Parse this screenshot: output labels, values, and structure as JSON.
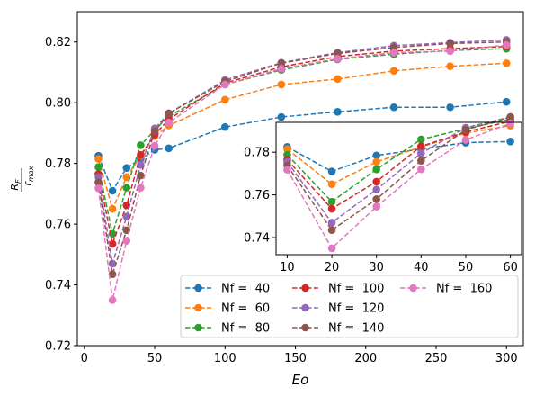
{
  "chart_data": {
    "type": "line",
    "xlabel": "Eo",
    "ylabel": {
      "numerator": "R",
      "numerator_sub": "F",
      "denominator": "r",
      "denominator_sub": "max"
    },
    "xlim": [
      -5,
      312
    ],
    "ylim": [
      0.72,
      0.83
    ],
    "xticks": [
      0,
      50,
      100,
      150,
      200,
      250,
      300
    ],
    "yticks": [
      0.72,
      0.74,
      0.76,
      0.78,
      0.8,
      0.82
    ],
    "ytick_labels": [
      "0.72",
      "0.74",
      "0.76",
      "0.78",
      "0.80",
      "0.82"
    ],
    "line_style": "dashed",
    "marker": "circle",
    "legend_position": "lower-right",
    "x": [
      10,
      20,
      30,
      40,
      50,
      60,
      100,
      140,
      180,
      220,
      260,
      300
    ],
    "series": [
      {
        "name": "Nf =  40",
        "color": "#1f77b4",
        "values": [
          0.7825,
          0.771,
          0.7785,
          0.7815,
          0.7845,
          0.785,
          0.792,
          0.7953,
          0.797,
          0.7985,
          0.7985,
          0.8003
        ]
      },
      {
        "name": "Nf =  60",
        "color": "#ff7f0e",
        "values": [
          0.7815,
          0.765,
          0.7755,
          0.7825,
          0.789,
          0.7925,
          0.801,
          0.806,
          0.8078,
          0.8105,
          0.812,
          0.813
        ]
      },
      {
        "name": "Nf =  80",
        "color": "#2ca02c",
        "values": [
          0.7788,
          0.7568,
          0.772,
          0.786,
          0.791,
          0.7955,
          0.806,
          0.8108,
          0.8143,
          0.816,
          0.8172,
          0.8178
        ]
      },
      {
        "name": "Nf =  100",
        "color": "#d62728",
        "values": [
          0.7765,
          0.7535,
          0.7662,
          0.7828,
          0.7895,
          0.7945,
          0.8065,
          0.8118,
          0.8152,
          0.817,
          0.8178,
          0.8185
        ]
      },
      {
        "name": "Nf =  120",
        "color": "#9467bd",
        "values": [
          0.7755,
          0.747,
          0.7625,
          0.7795,
          0.7915,
          0.7965,
          0.8075,
          0.8132,
          0.8165,
          0.8188,
          0.8198,
          0.8207
        ]
      },
      {
        "name": "Nf =  140",
        "color": "#8c564b",
        "values": [
          0.7738,
          0.7435,
          0.758,
          0.776,
          0.7905,
          0.7965,
          0.807,
          0.813,
          0.8162,
          0.8182,
          0.8195,
          0.82
        ]
      },
      {
        "name": "Nf =  160",
        "color": "#e377c2",
        "values": [
          0.7718,
          0.735,
          0.7545,
          0.772,
          0.7858,
          0.7935,
          0.806,
          0.8112,
          0.8145,
          0.8165,
          0.817,
          0.819
        ]
      }
    ],
    "inset": {
      "xlim": [
        7.5,
        62.5
      ],
      "ylim": [
        0.732,
        0.794
      ],
      "xticks": [
        10,
        20,
        30,
        40,
        50,
        60
      ],
      "yticks": [
        0.74,
        0.76,
        0.78
      ],
      "x": [
        10,
        20,
        30,
        40,
        50,
        60
      ]
    }
  },
  "legend": {
    "entries": [
      "Nf =  40",
      "Nf =  60",
      "Nf =  80",
      "Nf =  100",
      "Nf =  120",
      "Nf =  140",
      "Nf =  160"
    ]
  }
}
